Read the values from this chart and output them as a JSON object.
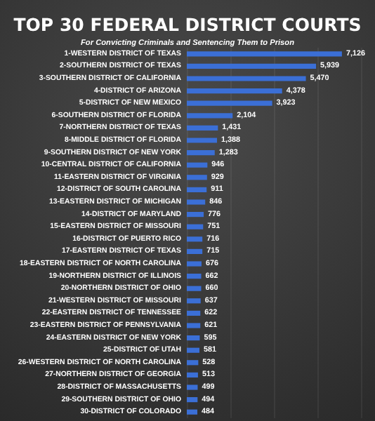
{
  "chart_data": {
    "type": "bar",
    "orientation": "horizontal",
    "title": "TOP 30 FEDERAL DISTRICT COURTS",
    "subtitle": "For Convicting Criminals and Sentencing Them to Prison",
    "categories": [
      "1-WESTERN DISTRICT OF TEXAS",
      "2-SOUTHERN DISTRICT OF TEXAS",
      "3-SOUTHERN DISTRICT OF CALIFORNIA",
      "4-DISTRICT OF ARIZONA",
      "5-DISTRICT OF NEW MEXICO",
      "6-SOUTHERN DISTRICT OF FLORIDA",
      "7-NORTHERN DISTRICT OF TEXAS",
      "8-MIDDLE DISTRICT OF FLORIDA",
      "9-SOUTHERN DISTRICT OF NEW YORK",
      "10-CENTRAL DISTRICT OF CALIFORNIA",
      "11-EASTERN DISTRICT OF VIRGINIA",
      "12-DISTRICT OF SOUTH CAROLINA",
      "13-EASTERN DISTRICT OF MICHIGAN",
      "14-DISTRICT OF MARYLAND",
      "15-EASTERN DISTRICT OF MISSOURI",
      "16-DISTRICT OF PUERTO RICO",
      "17-EASTERN DISTRICT OF TEXAS",
      "18-EASTERN DISTRICT OF NORTH CAROLINA",
      "19-NORTHERN DISTRICT OF ILLINOIS",
      "20-NORTHERN DISTRICT OF OHIO",
      "21-WESTERN DISTRICT OF MISSOURI",
      "22-EASTERN DISTRICT OF TENNESSEE",
      "23-EASTERN DISTRICT OF PENNSYLVANIA",
      "24-EASTERN DISTRICT OF NEW YORK",
      "25-DISTRICT OF UTAH",
      "26-WESTERN DISTRICT OF NORTH CAROLINA",
      "27-NORTHERN DISTRICT OF GEORGIA",
      "28-DISTRICT OF MASSACHUSETTS",
      "29-SOUTHERN DISTRICT OF OHIO",
      "30-DISTRICT OF COLORADO"
    ],
    "values": [
      7126,
      5939,
      5470,
      4378,
      3923,
      2104,
      1431,
      1388,
      1283,
      946,
      929,
      911,
      846,
      776,
      751,
      716,
      715,
      676,
      662,
      660,
      637,
      622,
      621,
      595,
      581,
      528,
      513,
      499,
      494,
      484
    ],
    "value_labels": [
      "7,126",
      "5,939",
      "5,470",
      "4,378",
      "3,923",
      "2,104",
      "1,431",
      "1,388",
      "1,283",
      "946",
      "929",
      "911",
      "846",
      "776",
      "751",
      "716",
      "715",
      "676",
      "662",
      "660",
      "637",
      "622",
      "621",
      "595",
      "581",
      "528",
      "513",
      "499",
      "494",
      "484"
    ],
    "color": "#3b6fd6",
    "relative": false,
    "grid": "x"
  }
}
